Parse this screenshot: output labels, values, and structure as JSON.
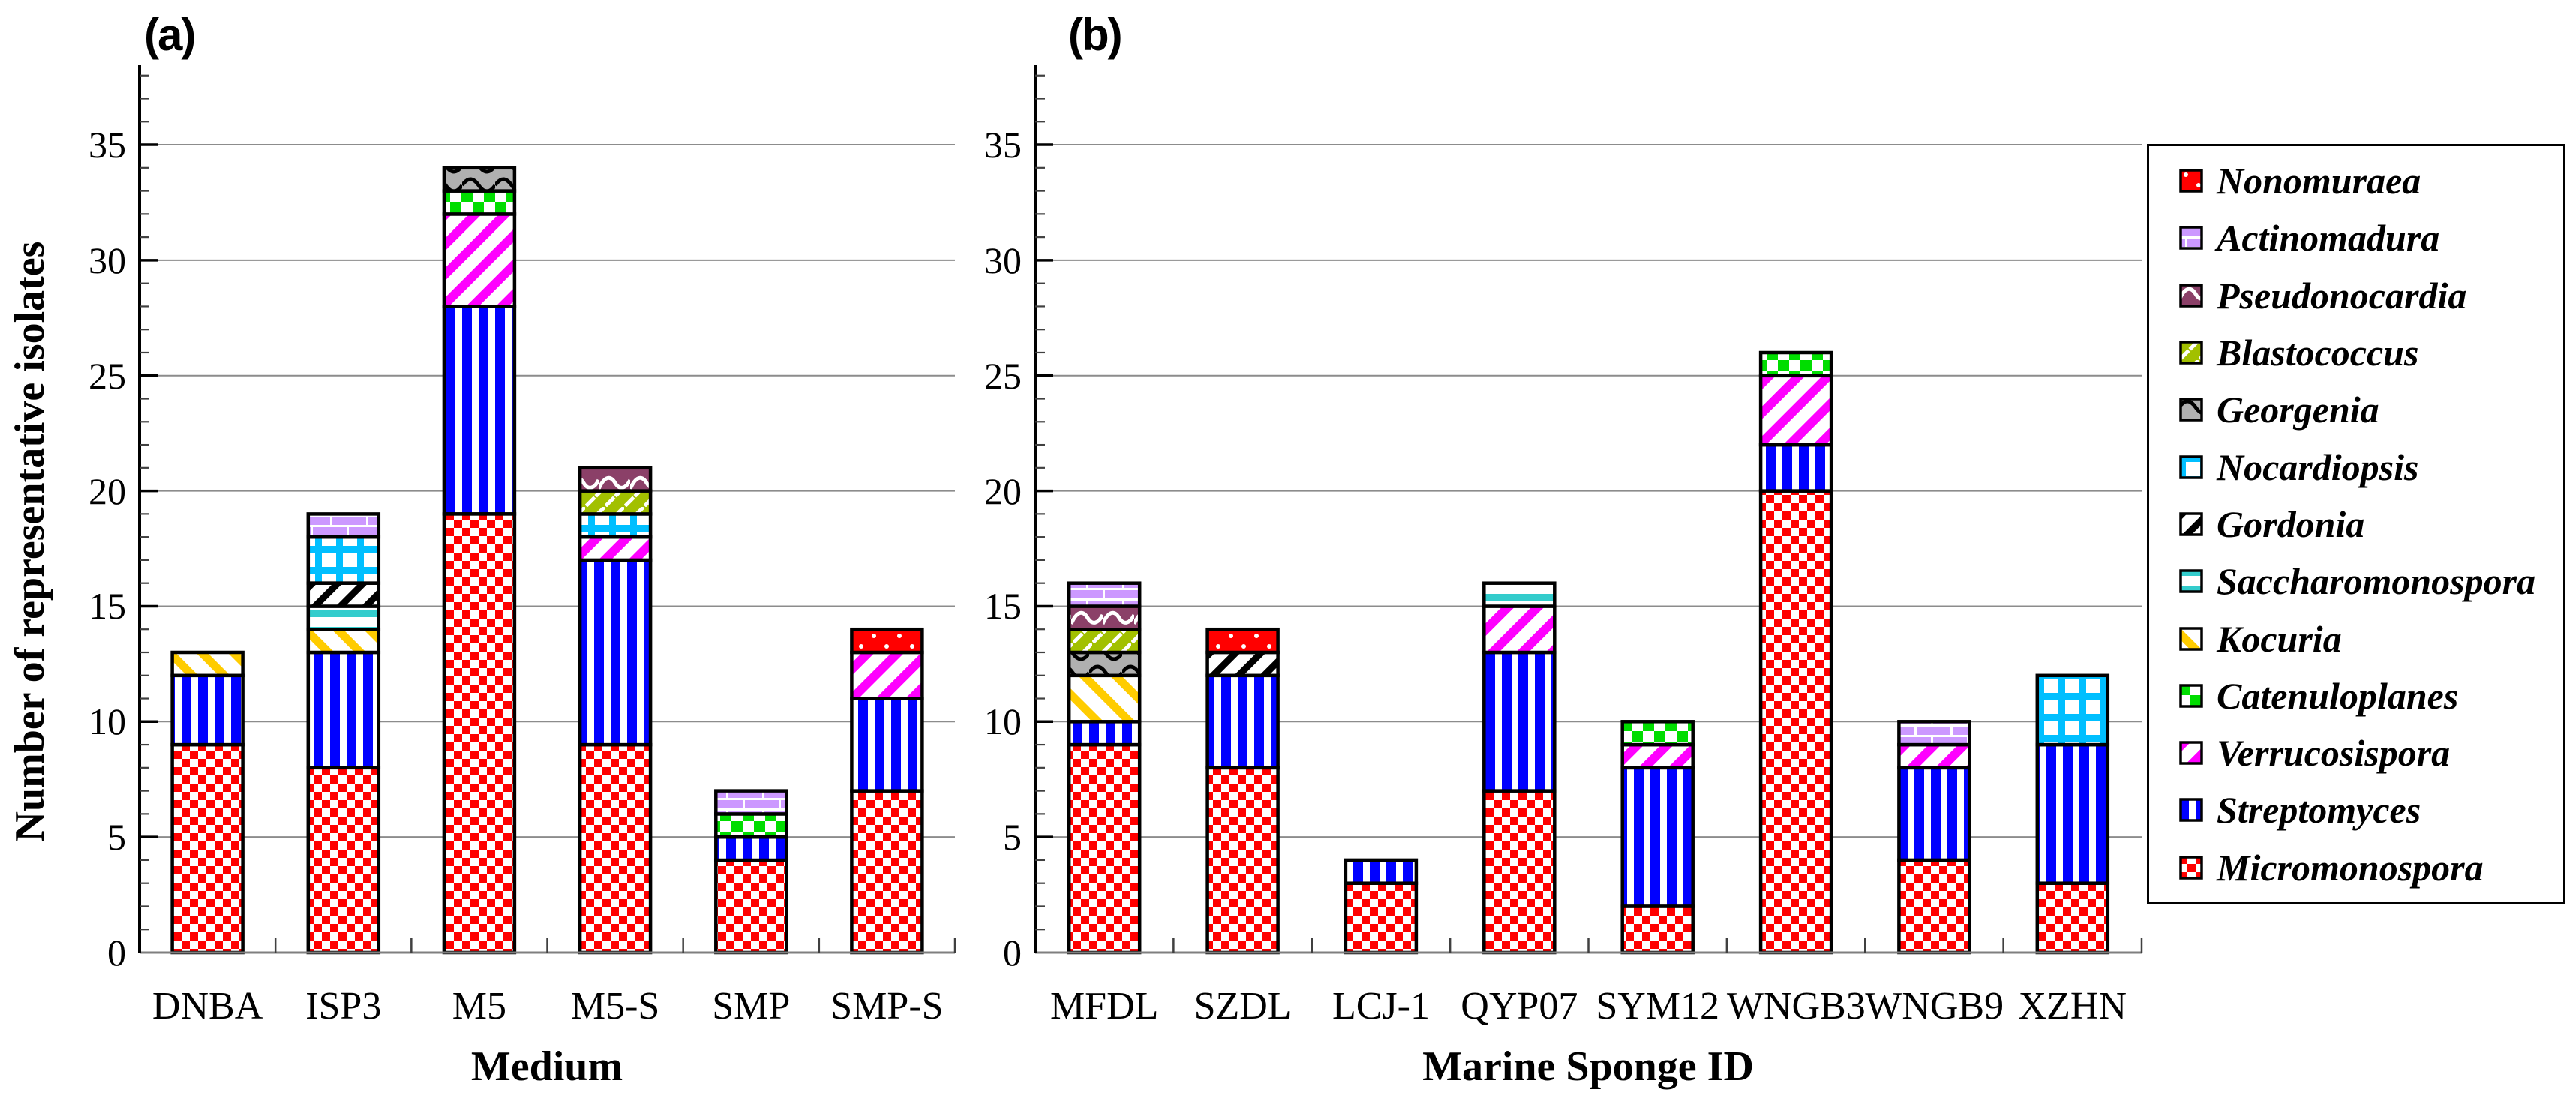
{
  "figure": {
    "background": "#FFFFFF",
    "panel_a_letter": "(a)",
    "panel_b_letter": "(b)"
  },
  "chart_data": {
    "type": "bar",
    "subtype": "stacked",
    "ylabel": "Number of representative isolates",
    "ylim": [
      0,
      38
    ],
    "yticks": [
      0,
      5,
      10,
      15,
      20,
      25,
      30,
      35
    ],
    "grid": "horizontal-major-only",
    "legend_position": "right-outside",
    "panels": [
      {
        "label": "(a)",
        "xlabel": "Medium",
        "categories": [
          "DNBA",
          "ISP3",
          "M5",
          "M5-S",
          "SMP",
          "SMP-S"
        ],
        "stacks": {
          "DNBA": [
            {
              "genus": "Micromonospora",
              "value": 9
            },
            {
              "genus": "Streptomyces",
              "value": 3
            },
            {
              "genus": "Kocuria",
              "value": 1
            }
          ],
          "ISP3": [
            {
              "genus": "Micromonospora",
              "value": 8
            },
            {
              "genus": "Streptomyces",
              "value": 5
            },
            {
              "genus": "Kocuria",
              "value": 1
            },
            {
              "genus": "Saccharomonospora",
              "value": 1
            },
            {
              "genus": "Gordonia",
              "value": 1
            },
            {
              "genus": "Nocardiopsis",
              "value": 2
            },
            {
              "genus": "Actinomadura",
              "value": 1
            }
          ],
          "M5": [
            {
              "genus": "Micromonospora",
              "value": 19
            },
            {
              "genus": "Streptomyces",
              "value": 9
            },
            {
              "genus": "Verrucosispora",
              "value": 4
            },
            {
              "genus": "Catenuloplanes",
              "value": 1
            },
            {
              "genus": "Georgenia",
              "value": 1
            }
          ],
          "M5-S": [
            {
              "genus": "Micromonospora",
              "value": 9
            },
            {
              "genus": "Streptomyces",
              "value": 8
            },
            {
              "genus": "Verrucosispora",
              "value": 1
            },
            {
              "genus": "Nocardiopsis",
              "value": 1
            },
            {
              "genus": "Blastococcus",
              "value": 1
            },
            {
              "genus": "Pseudonocardia",
              "value": 1
            }
          ],
          "SMP": [
            {
              "genus": "Micromonospora",
              "value": 4
            },
            {
              "genus": "Streptomyces",
              "value": 1
            },
            {
              "genus": "Catenuloplanes",
              "value": 1
            },
            {
              "genus": "Actinomadura",
              "value": 1
            }
          ],
          "SMP-S": [
            {
              "genus": "Micromonospora",
              "value": 7
            },
            {
              "genus": "Streptomyces",
              "value": 4
            },
            {
              "genus": "Verrucosispora",
              "value": 2
            },
            {
              "genus": "Nonomuraea",
              "value": 1
            }
          ]
        }
      },
      {
        "label": "(b)",
        "xlabel": "Marine Sponge ID",
        "categories": [
          "MFDL",
          "SZDL",
          "LCJ-1",
          "QYP07",
          "SYM12",
          "WNGB3",
          "WNGB9",
          "XZHN"
        ],
        "stacks": {
          "MFDL": [
            {
              "genus": "Micromonospora",
              "value": 9
            },
            {
              "genus": "Streptomyces",
              "value": 1
            },
            {
              "genus": "Kocuria",
              "value": 2
            },
            {
              "genus": "Georgenia",
              "value": 1
            },
            {
              "genus": "Blastococcus",
              "value": 1
            },
            {
              "genus": "Pseudonocardia",
              "value": 1
            },
            {
              "genus": "Actinomadura",
              "value": 1
            }
          ],
          "SZDL": [
            {
              "genus": "Micromonospora",
              "value": 8
            },
            {
              "genus": "Streptomyces",
              "value": 4
            },
            {
              "genus": "Gordonia",
              "value": 1
            },
            {
              "genus": "Nonomuraea",
              "value": 1
            }
          ],
          "LCJ-1": [
            {
              "genus": "Micromonospora",
              "value": 3
            },
            {
              "genus": "Streptomyces",
              "value": 1
            }
          ],
          "QYP07": [
            {
              "genus": "Micromonospora",
              "value": 7
            },
            {
              "genus": "Streptomyces",
              "value": 6
            },
            {
              "genus": "Verrucosispora",
              "value": 2
            },
            {
              "genus": "Saccharomonospora",
              "value": 1
            }
          ],
          "SYM12": [
            {
              "genus": "Micromonospora",
              "value": 2
            },
            {
              "genus": "Streptomyces",
              "value": 6
            },
            {
              "genus": "Verrucosispora",
              "value": 1
            },
            {
              "genus": "Catenuloplanes",
              "value": 1
            }
          ],
          "WNGB3": [
            {
              "genus": "Micromonospora",
              "value": 20
            },
            {
              "genus": "Streptomyces",
              "value": 2
            },
            {
              "genus": "Verrucosispora",
              "value": 3
            },
            {
              "genus": "Catenuloplanes",
              "value": 1
            }
          ],
          "WNGB9": [
            {
              "genus": "Micromonospora",
              "value": 4
            },
            {
              "genus": "Streptomyces",
              "value": 4
            },
            {
              "genus": "Verrucosispora",
              "value": 1
            },
            {
              "genus": "Actinomadura",
              "value": 1
            }
          ],
          "XZHN": [
            {
              "genus": "Micromonospora",
              "value": 3
            },
            {
              "genus": "Streptomyces",
              "value": 6
            },
            {
              "genus": "Nocardiopsis",
              "value": 3
            }
          ]
        }
      }
    ],
    "legend_top_to_bottom": [
      "Nonomuraea",
      "Actinomadura",
      "Pseudonocardia",
      "Blastococcus",
      "Georgenia",
      "Nocardiopsis",
      "Gordonia",
      "Saccharomonospora",
      "Kocuria",
      "Catenuloplanes",
      "Verrucosispora",
      "Streptomyces",
      "Micromonospora"
    ],
    "genus_styles": {
      "Nonomuraea": {
        "pattern": "solid-with-white-dots",
        "fg": "#FFFFFF",
        "bg": "#FF0000"
      },
      "Actinomadura": {
        "pattern": "bricks",
        "fg": "#CC99FF",
        "bg": "#FFFFFF"
      },
      "Pseudonocardia": {
        "pattern": "white-squiggles",
        "fg": "#FFFFFF",
        "bg": "#8B4068"
      },
      "Blastococcus": {
        "pattern": "white-diagonal-dashes",
        "fg": "#FFFFFF",
        "bg": "#A2C000"
      },
      "Georgenia": {
        "pattern": "black-waves",
        "fg": "#000000",
        "bg": "#B0B0B0"
      },
      "Nocardiopsis": {
        "pattern": "grid",
        "fg": "#00BFFF",
        "bg": "#FFFFFF"
      },
      "Gordonia": {
        "pattern": "diagonal-stripes-up",
        "fg": "#000000",
        "bg": "#FFFFFF"
      },
      "Saccharomonospora": {
        "pattern": "horizontal-stripes",
        "fg": "#33CCCC",
        "bg": "#FFFFFF"
      },
      "Kocuria": {
        "pattern": "diagonal-stripes-down",
        "fg": "#FFCC00",
        "bg": "#FFFFFF"
      },
      "Catenuloplanes": {
        "pattern": "checkerboard-large",
        "fg": "#00DD00",
        "bg": "#FFFFFF"
      },
      "Verrucosispora": {
        "pattern": "diagonal-stripes-up",
        "fg": "#FF00FF",
        "bg": "#FFFFFF"
      },
      "Streptomyces": {
        "pattern": "vertical-stripes",
        "fg": "#0000FF",
        "bg": "#FFFFFF"
      },
      "Micromonospora": {
        "pattern": "checkerboard",
        "fg": "#FF0000",
        "bg": "#FFFFFF"
      }
    },
    "axis_colors": {
      "gridline": "#8C8C8C",
      "baseline": "#7F7F7F",
      "spine": "#000000",
      "tick": "#404040"
    }
  }
}
